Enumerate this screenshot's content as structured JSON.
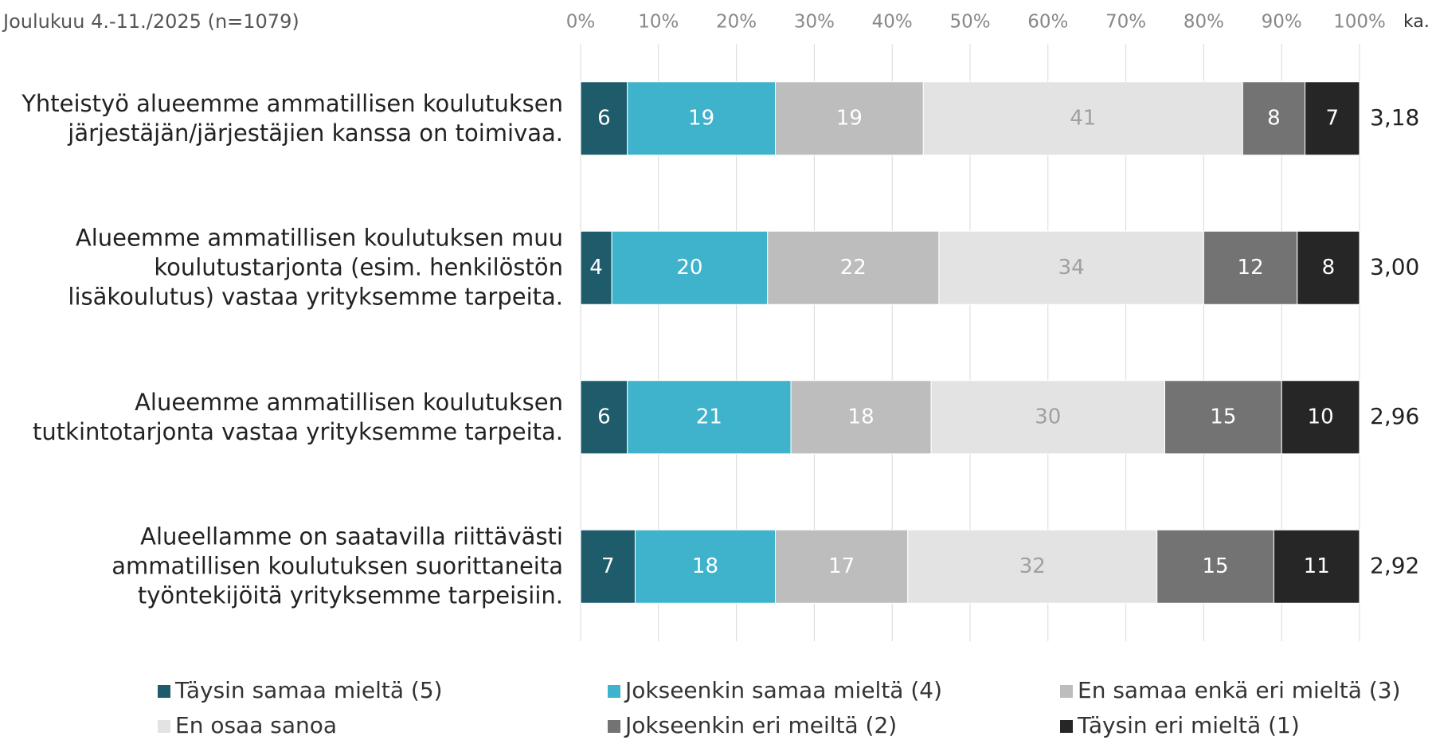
{
  "chart_data": {
    "type": "stacked-bar-horizontal",
    "subtitle": "Joulukuu 4.-11./2025 (n=1079)",
    "mean_header": "ka.",
    "categories": [
      "Yhteistyö alueemme ammatillisen koulutuksen\njärjestäjän/järjestäjien kanssa on toimivaa.",
      "Alueemme ammatillisen koulutuksen muu\nkoulutustarjonta (esim. henkilöstön\nlisäkoulutus) vastaa yrityksemme tarpeita.",
      "Alueemme ammatillisen koulutuksen\ntutkintotarjonta vastaa yrityksemme tarpeita.",
      "Alueellamme on saatavilla riittävästi\nammatillisen koulutuksen suorittaneita\ntyöntekijöitä yrityksemme tarpeisiin."
    ],
    "mean_labels": [
      "3,18",
      "3,00",
      "2,96",
      "2,92"
    ],
    "series": [
      {
        "name": "Täysin samaa mieltä (5)",
        "color": "#1f5c6b",
        "label_color": "#ffffff",
        "values": [
          6,
          4,
          6,
          7
        ]
      },
      {
        "name": "Jokseenkin samaa mieltä (4)",
        "color": "#3fb2cc",
        "label_color": "#ffffff",
        "values": [
          19,
          20,
          21,
          18
        ]
      },
      {
        "name": "En samaa enkä eri mieltä (3)",
        "color": "#bdbdbd",
        "label_color": "#ffffff",
        "values": [
          19,
          22,
          18,
          17
        ]
      },
      {
        "name": "En osaa sanoa",
        "color": "#e3e3e3",
        "label_color": "#a0a0a0",
        "values": [
          41,
          34,
          30,
          32
        ]
      },
      {
        "name": "Jokseenkin eri meiltä (2)",
        "color": "#737373",
        "label_color": "#ffffff",
        "values": [
          8,
          12,
          15,
          15
        ]
      },
      {
        "name": "Täysin eri mieltä (1)",
        "color": "#262626",
        "label_color": "#ffffff",
        "values": [
          7,
          8,
          10,
          11
        ]
      }
    ],
    "xlim": [
      0,
      100
    ],
    "xticks": [
      {
        "value": 0,
        "label": "0%"
      },
      {
        "value": 10,
        "label": "10%"
      },
      {
        "value": 20,
        "label": "20%"
      },
      {
        "value": 30,
        "label": "30%"
      },
      {
        "value": 40,
        "label": "40%"
      },
      {
        "value": 50,
        "label": "50%"
      },
      {
        "value": 60,
        "label": "60%"
      },
      {
        "value": 70,
        "label": "70%"
      },
      {
        "value": 80,
        "label": "80%"
      },
      {
        "value": 90,
        "label": "90%"
      },
      {
        "value": 100,
        "label": "100%"
      }
    ],
    "grid": true
  }
}
